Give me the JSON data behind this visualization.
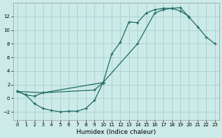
{
  "xlabel": "Humidex (Indice chaleur)",
  "bg_color": "#cceae8",
  "grid_color": "#aad4d0",
  "line_color": "#1e6b63",
  "xlim": [
    -0.5,
    23.5
  ],
  "ylim": [
    -3.2,
    14.0
  ],
  "xticks": [
    0,
    1,
    2,
    3,
    4,
    5,
    6,
    7,
    8,
    9,
    10,
    11,
    12,
    13,
    14,
    15,
    16,
    17,
    18,
    19,
    20,
    21,
    22,
    23
  ],
  "yticks": [
    -2,
    0,
    2,
    4,
    6,
    8,
    10,
    12
  ],
  "series": [
    {
      "x": [
        0,
        1,
        2,
        3,
        9,
        10,
        11,
        12,
        13,
        14,
        15,
        16,
        17,
        18,
        19,
        20
      ],
      "y": [
        1,
        0.5,
        0.3,
        0.8,
        1.2,
        2.3,
        6.5,
        8.2,
        11.2,
        11.1,
        12.5,
        13.0,
        13.2,
        13.2,
        12.8,
        12.0
      ]
    },
    {
      "x": [
        0,
        1,
        2,
        3,
        4,
        5,
        6,
        7,
        8,
        9,
        10
      ],
      "y": [
        1,
        0.5,
        -0.8,
        -1.5,
        -1.8,
        -2.0,
        -1.9,
        -1.9,
        -1.5,
        -0.3,
        2.3
      ]
    },
    {
      "x": [
        0,
        3,
        10,
        14,
        16,
        17,
        18,
        19,
        20,
        21,
        22,
        23
      ],
      "y": [
        1,
        0.8,
        2.3,
        8.0,
        12.5,
        13.0,
        13.2,
        13.3,
        11.9,
        10.5,
        9.0,
        8.0
      ]
    }
  ]
}
